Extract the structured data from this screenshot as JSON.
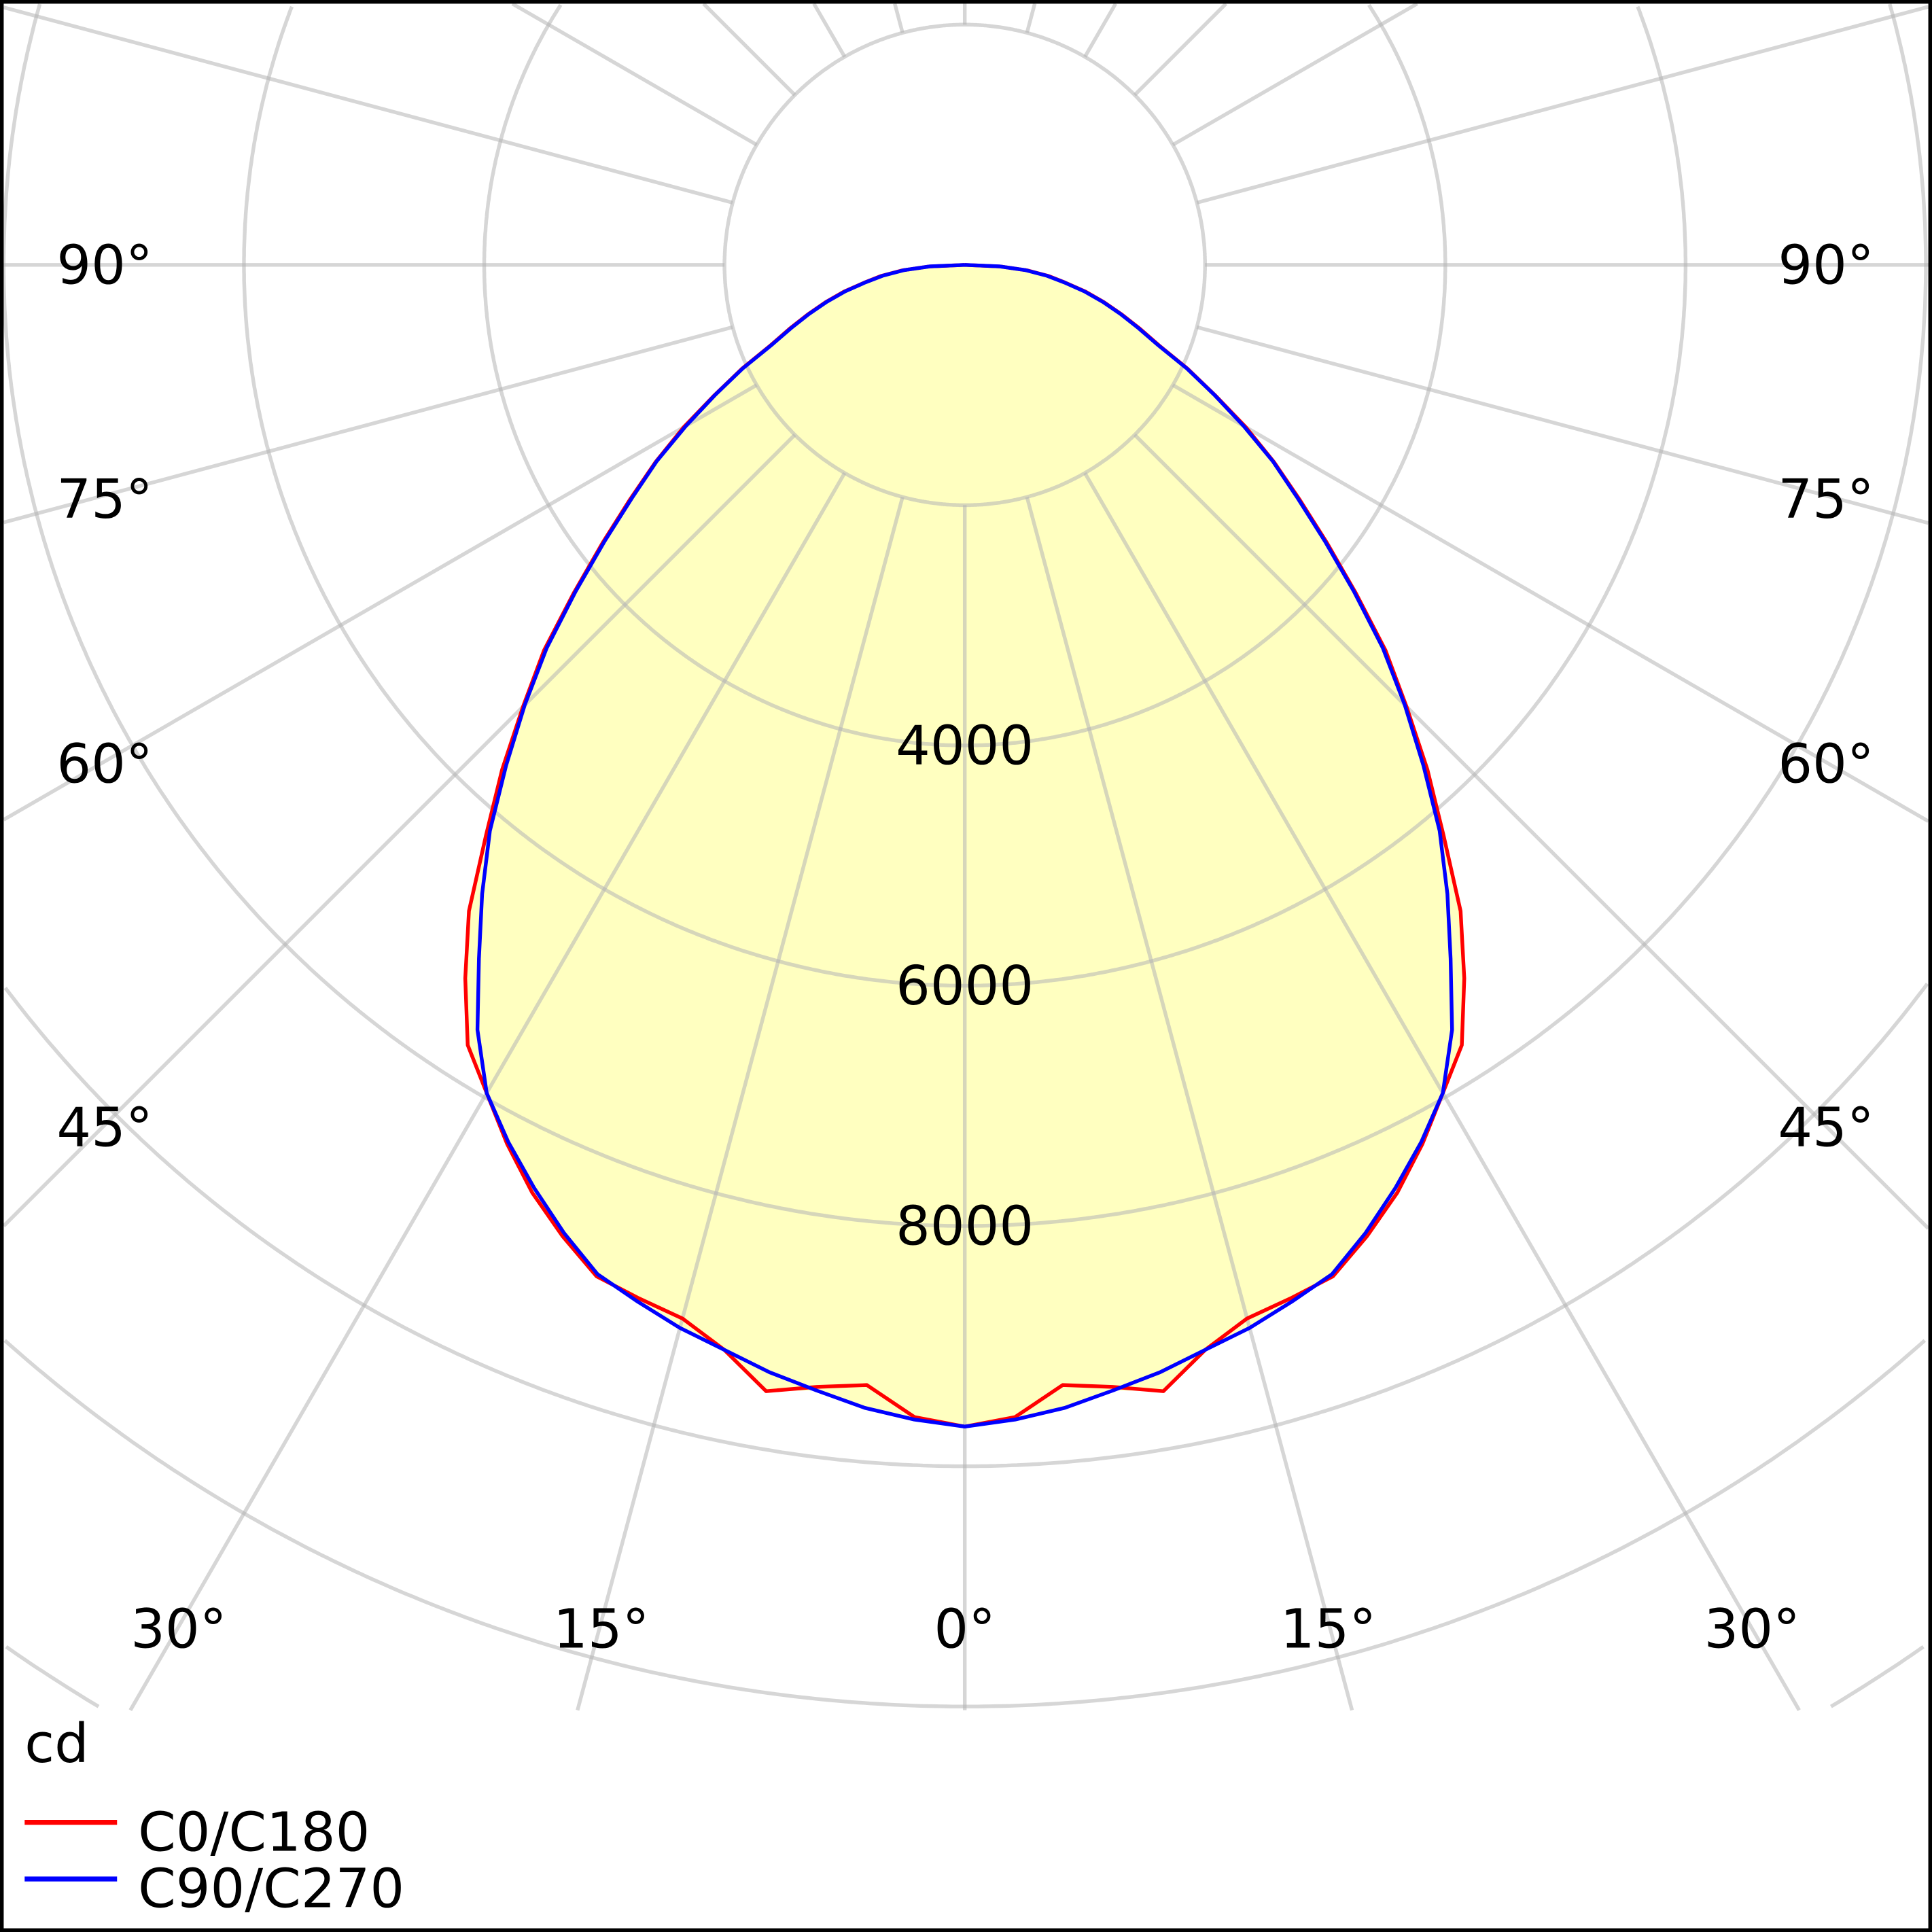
{
  "chart_data": {
    "type": "polar",
    "title": "",
    "unit_label": "cd",
    "radial_ticks": [
      2000,
      4000,
      6000,
      8000,
      10000,
      12000,
      14000,
      16000
    ],
    "radial_tick_labels": [
      "4000",
      "6000",
      "8000"
    ],
    "angle_labels_left": [
      "90°",
      "75°",
      "60°",
      "45°"
    ],
    "angle_labels_right": [
      "90°",
      "75°",
      "60°",
      "45°"
    ],
    "angle_labels_bottom": [
      "30°",
      "15°",
      "0°",
      "15°",
      "30°"
    ],
    "angle_step_deg": 15,
    "angles_deg": [
      0,
      2.5,
      5,
      7.5,
      10,
      12.5,
      15,
      17.5,
      20,
      22.5,
      25,
      27.5,
      30,
      32.5,
      35,
      37.5,
      40,
      42.5,
      45,
      47.5,
      50,
      52.5,
      55,
      57.5,
      60,
      62.5,
      65,
      67.5,
      70,
      72.5,
      75,
      77.5,
      80,
      82.5,
      85,
      87.5,
      90
    ],
    "series": [
      {
        "name": "C0/C180",
        "color": "#ff0000",
        "values": [
          9670,
          9600,
          9360,
          9420,
          9520,
          9250,
          9080,
          9020,
          8960,
          8750,
          8520,
          8250,
          7960,
          7700,
          7250,
          6780,
          6200,
          5700,
          5200,
          4750,
          4250,
          3800,
          3400,
          3050,
          2700,
          2350,
          2050,
          1750,
          1550,
          1370,
          1200,
          1030,
          850,
          700,
          520,
          300,
          0
        ]
      },
      {
        "name": "C90/C270",
        "color": "#0000ff",
        "values": [
          9670,
          9620,
          9550,
          9450,
          9360,
          9250,
          9160,
          9050,
          8940,
          8720,
          8480,
          8230,
          7960,
          7550,
          7050,
          6600,
          6150,
          5650,
          5180,
          4720,
          4230,
          3780,
          3380,
          3040,
          2680,
          2340,
          2040,
          1740,
          1540,
          1360,
          1190,
          1020,
          840,
          690,
          510,
          290,
          0
        ]
      }
    ],
    "fill_color": "#ffffc0",
    "grid_color": "#b4b4b4",
    "legend_position": "bottom-left"
  }
}
